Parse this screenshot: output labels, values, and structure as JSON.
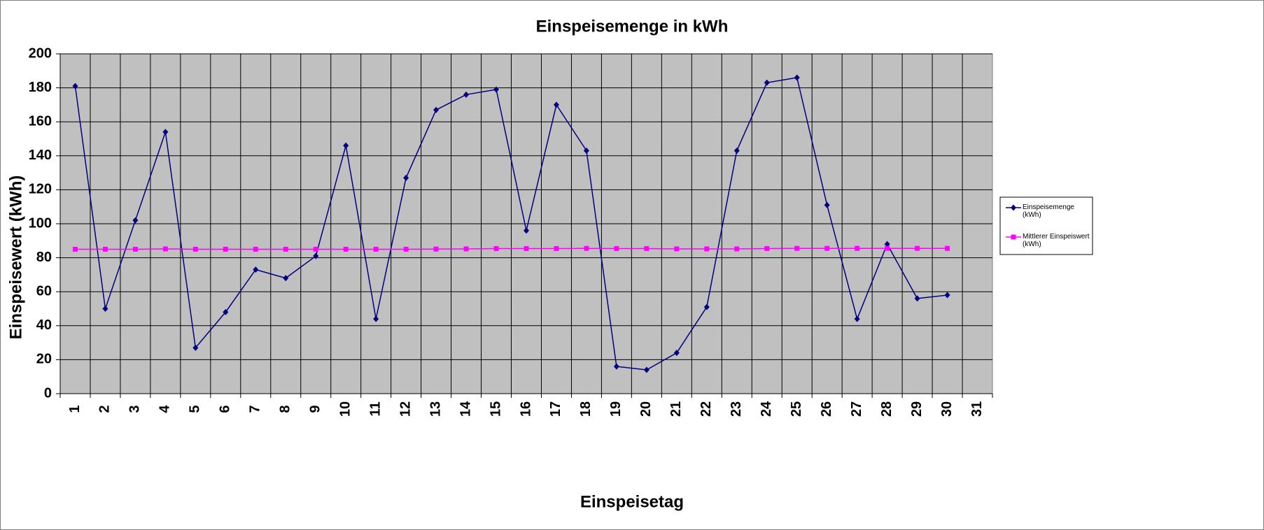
{
  "chart_data": {
    "type": "line",
    "title": "Einspeisemenge in kWh",
    "x_label": "Einspeisetag",
    "y_label": "Einspeisewert (kWh)",
    "categories": [
      "1",
      "2",
      "3",
      "4",
      "5",
      "6",
      "7",
      "8",
      "9",
      "10",
      "11",
      "12",
      "13",
      "14",
      "15",
      "16",
      "17",
      "18",
      "19",
      "20",
      "21",
      "22",
      "23",
      "24",
      "25",
      "26",
      "27",
      "28",
      "29",
      "30",
      "31"
    ],
    "series": [
      {
        "name": "Einspeisemenge (kWh)",
        "color": "#000080",
        "marker": "diamond",
        "values": [
          181,
          50,
          102,
          154,
          27,
          48,
          73,
          68,
          81,
          146,
          44,
          127,
          167,
          176,
          179,
          96,
          170,
          143,
          16,
          14,
          24,
          51,
          143,
          183,
          186,
          111,
          44,
          88,
          56,
          58,
          null
        ]
      },
      {
        "name": "Mittlerer Einspeiswert (kWh)",
        "color": "#ff00ff",
        "marker": "square",
        "values": [
          85,
          85,
          85,
          85.2,
          85,
          85,
          85,
          85,
          85,
          85,
          85,
          85,
          85.1,
          85.2,
          85.4,
          85.4,
          85.4,
          85.5,
          85.4,
          85.4,
          85.2,
          85.2,
          85.2,
          85.4,
          85.5,
          85.5,
          85.5,
          85.5,
          85.5,
          85.5,
          null
        ]
      }
    ],
    "ylim": [
      0,
      200
    ],
    "yticks": [
      0,
      20,
      40,
      60,
      80,
      100,
      120,
      140,
      160,
      180,
      200
    ],
    "grid": true,
    "legend": "right",
    "plot_background": "#c0c0c0"
  }
}
